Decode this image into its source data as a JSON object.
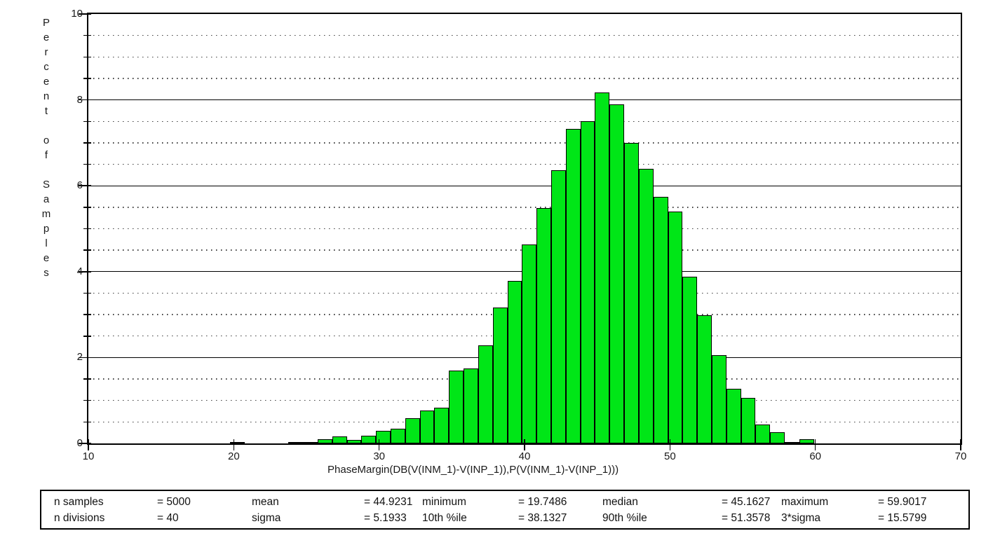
{
  "page": {
    "background": "#ffffff"
  },
  "chart_data": {
    "type": "bar",
    "subtype": "histogram",
    "title": "",
    "ylabel": "Percent of Samples",
    "xlabel": "PhaseMargin(DB(V(INM_1)-V(INP_1)),P(V(INM_1)-V(INP_1)))",
    "xlim": [
      10,
      70
    ],
    "ylim": [
      0,
      10
    ],
    "x_ticks": [
      "10",
      "20",
      "30",
      "40",
      "50",
      "60",
      "70"
    ],
    "y_ticks": [
      "0",
      "2",
      "4",
      "6",
      "8",
      "10"
    ],
    "y_major_step": 2,
    "y_minor_step": 0.5,
    "grid": {
      "major": "solid",
      "minor": "dotted",
      "orientation": "horizontal"
    },
    "legend": "none",
    "bins": {
      "start": 19.7486,
      "end": 59.9017,
      "count": 40,
      "width": 1.0038275
    },
    "values_percent": [
      0.04,
      0,
      0,
      0,
      0.04,
      0.04,
      0.1,
      0.16,
      0.08,
      0.18,
      0.3,
      0.34,
      0.58,
      0.76,
      0.84,
      1.7,
      1.74,
      2.28,
      3.16,
      3.78,
      4.64,
      5.48,
      6.36,
      7.32,
      7.5,
      8.18,
      7.9,
      7.0,
      6.4,
      5.74,
      5.4,
      3.88,
      2.98,
      2.06,
      1.28,
      1.06,
      0.44,
      0.26,
      0.04,
      0.1
    ]
  },
  "stats_table": {
    "cells": [
      [
        "n samples",
        "= 5000",
        "mean",
        "= 44.9231",
        "minimum",
        "= 19.7486",
        "median",
        "= 45.1627",
        "maximum",
        "= 59.9017"
      ],
      [
        "n divisions",
        "= 40",
        "sigma",
        "= 5.1933",
        "10th %ile",
        "= 38.1327",
        "90th %ile",
        "= 51.3578",
        "3*sigma",
        "= 15.5799"
      ]
    ]
  },
  "colors": {
    "bar_fill": "#00e617",
    "bar_border": "#000000",
    "axis": "#000000",
    "grid_major": "#000000",
    "grid_minor": "#3c3c3c",
    "text": "#1a1a1a"
  }
}
